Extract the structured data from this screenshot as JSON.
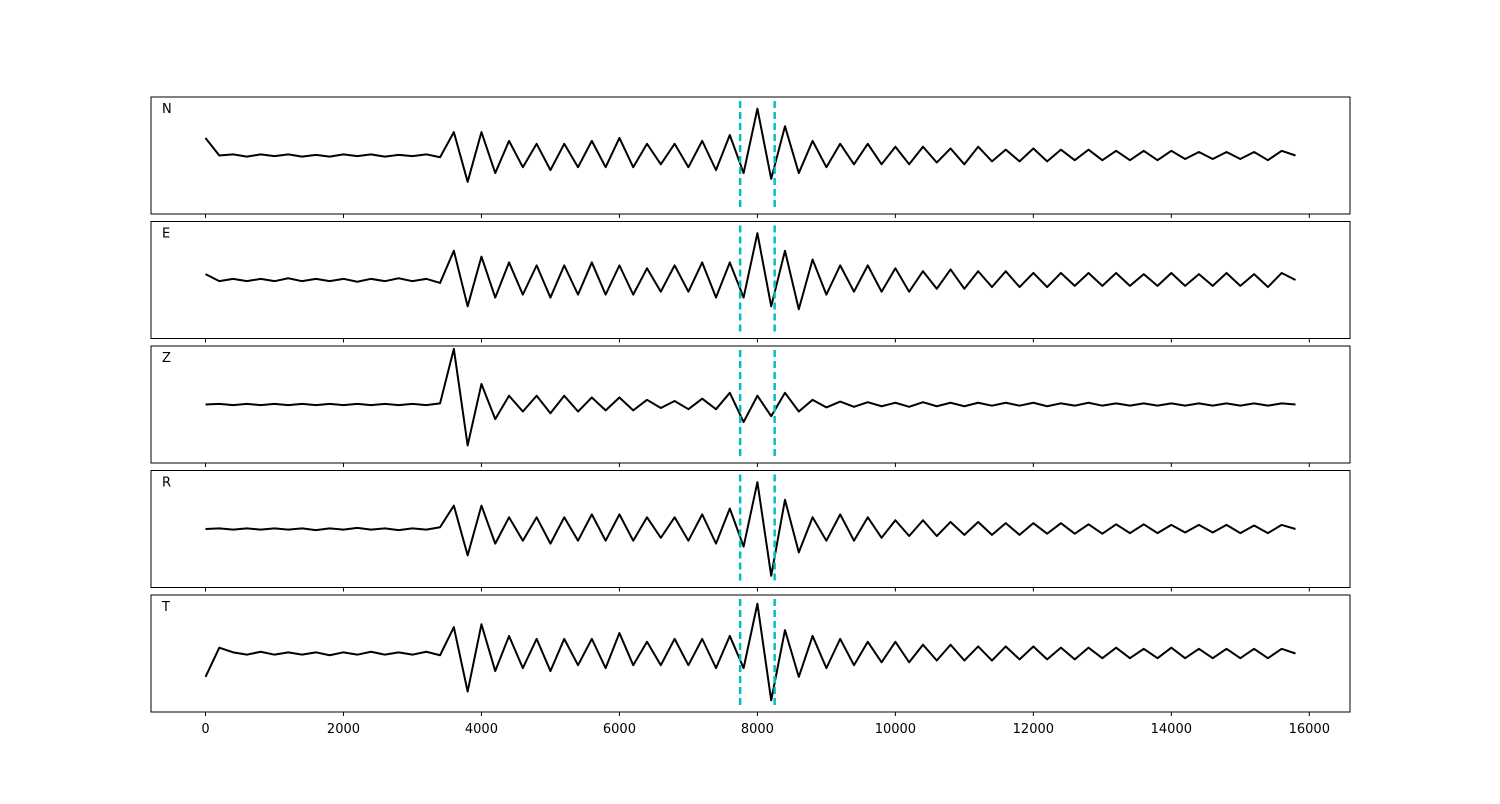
{
  "chart_data": [
    {
      "type": "line",
      "title": "N",
      "color": "#000000",
      "vlines": [
        7750,
        8250
      ],
      "vline_color": "#00bfbf",
      "xlim": [
        -790,
        16590
      ],
      "ylim": [
        -1,
        1
      ],
      "xticks": [
        0,
        2000,
        4000,
        6000,
        8000,
        10000,
        12000,
        14000,
        16000
      ],
      "x": [
        0,
        200,
        400,
        600,
        800,
        1000,
        1200,
        1400,
        1600,
        1800,
        2000,
        2200,
        2400,
        2600,
        2800,
        3000,
        3200,
        3400,
        3600,
        3800,
        4000,
        4200,
        4400,
        4600,
        4800,
        5000,
        5200,
        5400,
        5600,
        5800,
        6000,
        6200,
        6400,
        6600,
        6800,
        7000,
        7200,
        7400,
        7600,
        7800,
        8000,
        8200,
        8400,
        8600,
        8800,
        9000,
        9200,
        9400,
        9600,
        9800,
        10000,
        10200,
        10400,
        10600,
        10800,
        11000,
        11200,
        11400,
        11600,
        11800,
        12000,
        12200,
        12400,
        12600,
        12800,
        13000,
        13200,
        13400,
        13600,
        13800,
        14000,
        14200,
        14400,
        14600,
        14800,
        15000,
        15200,
        15400,
        15600,
        15800
      ],
      "values": [
        0.3,
        0.0,
        0.02,
        -0.02,
        0.02,
        -0.01,
        0.02,
        -0.02,
        0.01,
        -0.02,
        0.02,
        -0.01,
        0.02,
        -0.02,
        0.01,
        -0.01,
        0.02,
        -0.03,
        0.4,
        -0.45,
        0.4,
        -0.3,
        0.25,
        -0.2,
        0.2,
        -0.25,
        0.2,
        -0.2,
        0.25,
        -0.2,
        0.3,
        -0.2,
        0.2,
        -0.15,
        0.2,
        -0.2,
        0.25,
        -0.25,
        0.35,
        -0.3,
        0.8,
        -0.4,
        0.5,
        -0.3,
        0.25,
        -0.2,
        0.2,
        -0.15,
        0.2,
        -0.15,
        0.15,
        -0.15,
        0.15,
        -0.12,
        0.12,
        -0.15,
        0.15,
        -0.1,
        0.1,
        -0.1,
        0.12,
        -0.1,
        0.1,
        -0.08,
        0.1,
        -0.08,
        0.08,
        -0.08,
        0.08,
        -0.08,
        0.08,
        -0.06,
        0.06,
        -0.06,
        0.06,
        -0.06,
        0.06,
        -0.08,
        0.08,
        0.0
      ]
    },
    {
      "type": "line",
      "title": "E",
      "color": "#000000",
      "vlines": [
        7750,
        8250
      ],
      "vline_color": "#00bfbf",
      "xlim": [
        -790,
        16590
      ],
      "ylim": [
        -1,
        1
      ],
      "xticks": [
        0,
        2000,
        4000,
        6000,
        8000,
        10000,
        12000,
        14000,
        16000
      ],
      "x": [
        0,
        200,
        400,
        600,
        800,
        1000,
        1200,
        1400,
        1600,
        1800,
        2000,
        2200,
        2400,
        2600,
        2800,
        3000,
        3200,
        3400,
        3600,
        3800,
        4000,
        4200,
        4400,
        4600,
        4800,
        5000,
        5200,
        5400,
        5600,
        5800,
        6000,
        6200,
        6400,
        6600,
        6800,
        7000,
        7200,
        7400,
        7600,
        7800,
        8000,
        8200,
        8400,
        8600,
        8800,
        9000,
        9200,
        9400,
        9600,
        9800,
        10000,
        10200,
        10400,
        10600,
        10800,
        11000,
        11200,
        11400,
        11600,
        11800,
        12000,
        12200,
        12400,
        12600,
        12800,
        13000,
        13200,
        13400,
        13600,
        13800,
        14000,
        14200,
        14400,
        14600,
        14800,
        15000,
        15200,
        15400,
        15600,
        15800
      ],
      "values": [
        0.1,
        -0.02,
        0.02,
        -0.02,
        0.02,
        -0.02,
        0.03,
        -0.02,
        0.02,
        -0.02,
        0.02,
        -0.03,
        0.02,
        -0.02,
        0.03,
        -0.02,
        0.02,
        -0.05,
        0.5,
        -0.45,
        0.4,
        -0.3,
        0.3,
        -0.25,
        0.25,
        -0.3,
        0.25,
        -0.25,
        0.3,
        -0.25,
        0.25,
        -0.25,
        0.2,
        -0.2,
        0.25,
        -0.2,
        0.3,
        -0.3,
        0.3,
        -0.3,
        0.8,
        -0.45,
        0.5,
        -0.5,
        0.35,
        -0.25,
        0.25,
        -0.2,
        0.25,
        -0.2,
        0.2,
        -0.2,
        0.15,
        -0.15,
        0.18,
        -0.15,
        0.15,
        -0.12,
        0.15,
        -0.12,
        0.12,
        -0.12,
        0.12,
        -0.1,
        0.12,
        -0.1,
        0.12,
        -0.1,
        0.1,
        -0.1,
        0.12,
        -0.1,
        0.1,
        -0.1,
        0.12,
        -0.1,
        0.1,
        -0.12,
        0.12,
        0.0
      ]
    },
    {
      "type": "line",
      "title": "Z",
      "color": "#000000",
      "vlines": [
        7750,
        8250
      ],
      "vline_color": "#00bfbf",
      "xlim": [
        -790,
        16590
      ],
      "ylim": [
        -1,
        1
      ],
      "xticks": [
        0,
        2000,
        4000,
        6000,
        8000,
        10000,
        12000,
        14000,
        16000
      ],
      "x": [
        0,
        200,
        400,
        600,
        800,
        1000,
        1200,
        1400,
        1600,
        1800,
        2000,
        2200,
        2400,
        2600,
        2800,
        3000,
        3200,
        3400,
        3600,
        3800,
        4000,
        4200,
        4400,
        4600,
        4800,
        5000,
        5200,
        5400,
        5600,
        5800,
        6000,
        6200,
        6400,
        6600,
        6800,
        7000,
        7200,
        7400,
        7600,
        7800,
        8000,
        8200,
        8400,
        8600,
        8800,
        9000,
        9200,
        9400,
        9600,
        9800,
        10000,
        10200,
        10400,
        10600,
        10800,
        11000,
        11200,
        11400,
        11600,
        11800,
        12000,
        12200,
        12400,
        12600,
        12800,
        13000,
        13200,
        13400,
        13600,
        13800,
        14000,
        14200,
        14400,
        14600,
        14800,
        15000,
        15200,
        15400,
        15600,
        15800
      ],
      "values": [
        0.0,
        0.01,
        -0.01,
        0.01,
        -0.01,
        0.01,
        -0.01,
        0.01,
        -0.01,
        0.01,
        -0.01,
        0.01,
        -0.01,
        0.01,
        -0.01,
        0.01,
        -0.01,
        0.02,
        0.95,
        -0.7,
        0.35,
        -0.25,
        0.15,
        -0.12,
        0.15,
        -0.15,
        0.15,
        -0.12,
        0.12,
        -0.1,
        0.12,
        -0.1,
        0.08,
        -0.06,
        0.06,
        -0.08,
        0.1,
        -0.08,
        0.2,
        -0.3,
        0.15,
        -0.2,
        0.2,
        -0.12,
        0.08,
        -0.05,
        0.05,
        -0.04,
        0.04,
        -0.03,
        0.03,
        -0.04,
        0.04,
        -0.03,
        0.03,
        -0.03,
        0.03,
        -0.02,
        0.03,
        -0.02,
        0.03,
        -0.03,
        0.02,
        -0.02,
        0.03,
        -0.02,
        0.02,
        -0.02,
        0.02,
        -0.02,
        0.02,
        -0.02,
        0.02,
        -0.02,
        0.02,
        -0.02,
        0.02,
        -0.02,
        0.02,
        0.0
      ]
    },
    {
      "type": "line",
      "title": "R",
      "color": "#000000",
      "vlines": [
        7750,
        8250
      ],
      "vline_color": "#00bfbf",
      "xlim": [
        -790,
        16590
      ],
      "ylim": [
        -1,
        1
      ],
      "xticks": [
        0,
        2000,
        4000,
        6000,
        8000,
        10000,
        12000,
        14000,
        16000
      ],
      "x": [
        0,
        200,
        400,
        600,
        800,
        1000,
        1200,
        1400,
        1600,
        1800,
        2000,
        2200,
        2400,
        2600,
        2800,
        3000,
        3200,
        3400,
        3600,
        3800,
        4000,
        4200,
        4400,
        4600,
        4800,
        5000,
        5200,
        5400,
        5600,
        5800,
        6000,
        6200,
        6400,
        6600,
        6800,
        7000,
        7200,
        7400,
        7600,
        7800,
        8000,
        8200,
        8400,
        8600,
        8800,
        9000,
        9200,
        9400,
        9600,
        9800,
        10000,
        10200,
        10400,
        10600,
        10800,
        11000,
        11200,
        11400,
        11600,
        11800,
        12000,
        12200,
        12400,
        12600,
        12800,
        13000,
        13200,
        13400,
        13600,
        13800,
        14000,
        14200,
        14400,
        14600,
        14800,
        15000,
        15200,
        15400,
        15600,
        15800
      ],
      "values": [
        0.0,
        0.01,
        -0.01,
        0.01,
        -0.01,
        0.01,
        -0.01,
        0.01,
        -0.02,
        0.01,
        -0.01,
        0.02,
        -0.01,
        0.01,
        -0.02,
        0.01,
        -0.01,
        0.03,
        0.4,
        -0.45,
        0.4,
        -0.25,
        0.2,
        -0.2,
        0.2,
        -0.25,
        0.2,
        -0.2,
        0.25,
        -0.2,
        0.25,
        -0.2,
        0.2,
        -0.15,
        0.2,
        -0.2,
        0.25,
        -0.25,
        0.35,
        -0.3,
        0.8,
        -0.8,
        0.5,
        -0.4,
        0.2,
        -0.2,
        0.25,
        -0.2,
        0.2,
        -0.15,
        0.15,
        -0.12,
        0.15,
        -0.12,
        0.12,
        -0.1,
        0.12,
        -0.1,
        0.1,
        -0.1,
        0.1,
        -0.08,
        0.1,
        -0.08,
        0.08,
        -0.08,
        0.08,
        -0.07,
        0.08,
        -0.07,
        0.07,
        -0.06,
        0.07,
        -0.06,
        0.07,
        -0.07,
        0.06,
        -0.07,
        0.07,
        0.0
      ]
    },
    {
      "type": "line",
      "title": "T",
      "color": "#000000",
      "vlines": [
        7750,
        8250
      ],
      "vline_color": "#00bfbf",
      "xlim": [
        -790,
        16590
      ],
      "ylim": [
        -1,
        1
      ],
      "xticks": [
        0,
        2000,
        4000,
        6000,
        8000,
        10000,
        12000,
        14000,
        16000
      ],
      "x": [
        0,
        200,
        400,
        600,
        800,
        1000,
        1200,
        1400,
        1600,
        1800,
        2000,
        2200,
        2400,
        2600,
        2800,
        3000,
        3200,
        3400,
        3600,
        3800,
        4000,
        4200,
        4400,
        4600,
        4800,
        5000,
        5200,
        5400,
        5600,
        5800,
        6000,
        6200,
        6400,
        6600,
        6800,
        7000,
        7200,
        7400,
        7600,
        7800,
        8000,
        8200,
        8400,
        8600,
        8800,
        9000,
        9200,
        9400,
        9600,
        9800,
        10000,
        10200,
        10400,
        10600,
        10800,
        11000,
        11200,
        11400,
        11600,
        11800,
        12000,
        12200,
        12400,
        12600,
        12800,
        13000,
        13200,
        13400,
        13600,
        13800,
        14000,
        14200,
        14400,
        14600,
        14800,
        15000,
        15200,
        15400,
        15600,
        15800
      ],
      "values": [
        -0.4,
        0.1,
        0.02,
        -0.02,
        0.03,
        -0.02,
        0.02,
        -0.02,
        0.02,
        -0.03,
        0.02,
        -0.02,
        0.03,
        -0.02,
        0.02,
        -0.02,
        0.03,
        -0.03,
        0.45,
        -0.65,
        0.5,
        -0.3,
        0.3,
        -0.25,
        0.25,
        -0.3,
        0.25,
        -0.2,
        0.25,
        -0.25,
        0.35,
        -0.2,
        0.2,
        -0.2,
        0.25,
        -0.2,
        0.25,
        -0.25,
        0.3,
        -0.25,
        0.85,
        -0.8,
        0.4,
        -0.4,
        0.3,
        -0.25,
        0.25,
        -0.2,
        0.2,
        -0.15,
        0.2,
        -0.15,
        0.15,
        -0.12,
        0.15,
        -0.12,
        0.12,
        -0.12,
        0.12,
        -0.1,
        0.12,
        -0.1,
        0.1,
        -0.1,
        0.1,
        -0.08,
        0.1,
        -0.08,
        0.08,
        -0.08,
        0.1,
        -0.08,
        0.08,
        -0.08,
        0.08,
        -0.08,
        0.08,
        -0.08,
        0.08,
        0.0
      ]
    }
  ]
}
